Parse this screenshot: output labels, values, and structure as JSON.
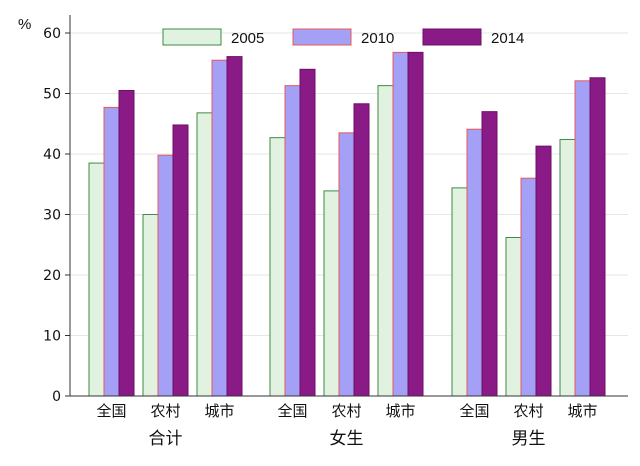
{
  "chart_data": {
    "type": "bar",
    "ylabel": "%",
    "ylim": [
      0,
      60
    ],
    "yticks": [
      "0",
      "10",
      "20",
      "30",
      "40",
      "50",
      "60"
    ],
    "grid": "horizontal",
    "legend_position": "top-center",
    "groups": [
      {
        "label": "合计",
        "categories": [
          "全国",
          "农村",
          "城市"
        ]
      },
      {
        "label": "女生",
        "categories": [
          "全国",
          "农村",
          "城市"
        ]
      },
      {
        "label": "男生",
        "categories": [
          "全国",
          "农村",
          "城市"
        ]
      }
    ],
    "series": [
      {
        "name": "2005",
        "fill": "#e2f2e0",
        "stroke": "#3f8a46",
        "values": [
          38.5,
          30.0,
          46.8,
          42.7,
          33.9,
          51.3,
          34.4,
          26.2,
          42.4
        ]
      },
      {
        "name": "2010",
        "fill": "#a3a0f5",
        "stroke": "#e8585c",
        "values": [
          47.7,
          39.8,
          55.5,
          51.3,
          43.5,
          56.8,
          44.1,
          36.0,
          52.1
        ]
      },
      {
        "name": "2014",
        "fill": "#8a1a86",
        "stroke": "#6e0f69",
        "values": [
          50.5,
          44.8,
          56.1,
          54.0,
          48.3,
          56.8,
          47.0,
          41.3,
          52.6
        ]
      }
    ]
  }
}
